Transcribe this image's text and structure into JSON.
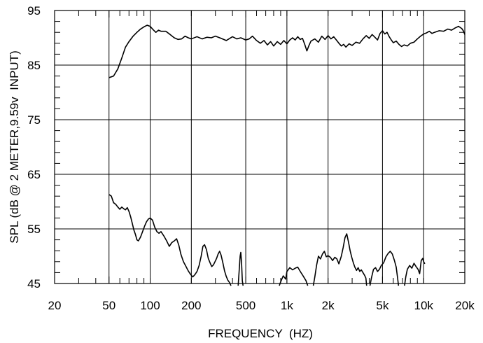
{
  "chart_data": {
    "type": "line",
    "xlabel": "FREQUENCY  (HZ)",
    "ylabel": "SPL (dB @ 2 METER,9.59v  INPUT)",
    "xscale": "log",
    "xlim": [
      20,
      20000
    ],
    "ylim": [
      45,
      95
    ],
    "grid": true,
    "x_ticks": [
      {
        "value": 20,
        "label": "20"
      },
      {
        "value": 50,
        "label": "50"
      },
      {
        "value": 100,
        "label": "100"
      },
      {
        "value": 200,
        "label": "200"
      },
      {
        "value": 500,
        "label": "500"
      },
      {
        "value": 1000,
        "label": "1k"
      },
      {
        "value": 2000,
        "label": "2k"
      },
      {
        "value": 5000,
        "label": "5k"
      },
      {
        "value": 10000,
        "label": "10k"
      },
      {
        "value": 20000,
        "label": "20k"
      }
    ],
    "y_ticks": [
      {
        "value": 45,
        "label": "45"
      },
      {
        "value": 55,
        "label": "55"
      },
      {
        "value": 65,
        "label": "65"
      },
      {
        "value": 75,
        "label": "75"
      },
      {
        "value": 85,
        "label": "85"
      },
      {
        "value": 95,
        "label": "95"
      }
    ],
    "series": [
      {
        "color": "#000000",
        "points": [
          [
            50,
            82.7
          ],
          [
            54,
            83.0
          ],
          [
            58,
            84.3
          ],
          [
            62,
            86.3
          ],
          [
            66,
            88.3
          ],
          [
            70,
            89.3
          ],
          [
            75,
            90.3
          ],
          [
            80,
            91.0
          ],
          [
            85,
            91.6
          ],
          [
            90,
            92.0
          ],
          [
            95,
            92.3
          ],
          [
            100,
            92.1
          ],
          [
            105,
            91.5
          ],
          [
            110,
            91.0
          ],
          [
            115,
            91.4
          ],
          [
            120,
            91.2
          ],
          [
            130,
            91.2
          ],
          [
            140,
            90.6
          ],
          [
            150,
            90.0
          ],
          [
            160,
            89.7
          ],
          [
            170,
            89.8
          ],
          [
            180,
            90.3
          ],
          [
            190,
            90.0
          ],
          [
            200,
            89.8
          ],
          [
            220,
            90.2
          ],
          [
            240,
            89.8
          ],
          [
            260,
            90.1
          ],
          [
            280,
            90.0
          ],
          [
            300,
            90.3
          ],
          [
            330,
            89.9
          ],
          [
            360,
            89.5
          ],
          [
            400,
            90.2
          ],
          [
            430,
            89.8
          ],
          [
            460,
            90.0
          ],
          [
            500,
            89.6
          ],
          [
            530,
            89.8
          ],
          [
            560,
            90.3
          ],
          [
            600,
            89.5
          ],
          [
            640,
            89.0
          ],
          [
            680,
            89.5
          ],
          [
            720,
            88.7
          ],
          [
            760,
            89.3
          ],
          [
            800,
            88.5
          ],
          [
            850,
            89.3
          ],
          [
            900,
            88.8
          ],
          [
            950,
            89.5
          ],
          [
            1000,
            88.9
          ],
          [
            1050,
            89.6
          ],
          [
            1100,
            90.0
          ],
          [
            1150,
            89.6
          ],
          [
            1200,
            90.2
          ],
          [
            1250,
            89.7
          ],
          [
            1300,
            89.9
          ],
          [
            1350,
            88.8
          ],
          [
            1400,
            87.6
          ],
          [
            1450,
            88.6
          ],
          [
            1500,
            89.4
          ],
          [
            1600,
            89.8
          ],
          [
            1700,
            89.2
          ],
          [
            1800,
            90.3
          ],
          [
            1900,
            89.7
          ],
          [
            2000,
            90.4
          ],
          [
            2100,
            89.8
          ],
          [
            2200,
            90.2
          ],
          [
            2300,
            89.6
          ],
          [
            2400,
            89.0
          ],
          [
            2500,
            88.5
          ],
          [
            2600,
            88.8
          ],
          [
            2700,
            88.3
          ],
          [
            2850,
            88.9
          ],
          [
            3000,
            88.6
          ],
          [
            3200,
            89.2
          ],
          [
            3400,
            89.0
          ],
          [
            3600,
            89.8
          ],
          [
            3800,
            90.4
          ],
          [
            4000,
            89.9
          ],
          [
            4200,
            90.6
          ],
          [
            4400,
            90.1
          ],
          [
            4600,
            89.6
          ],
          [
            4800,
            90.8
          ],
          [
            5000,
            91.3
          ],
          [
            5200,
            90.7
          ],
          [
            5400,
            91.0
          ],
          [
            5600,
            90.2
          ],
          [
            5800,
            89.6
          ],
          [
            6000,
            89.1
          ],
          [
            6300,
            89.4
          ],
          [
            6600,
            88.8
          ],
          [
            6900,
            88.4
          ],
          [
            7200,
            88.7
          ],
          [
            7600,
            88.5
          ],
          [
            8000,
            89.0
          ],
          [
            8500,
            89.2
          ],
          [
            9000,
            89.8
          ],
          [
            9500,
            90.3
          ],
          [
            10000,
            90.7
          ],
          [
            10500,
            90.9
          ],
          [
            11000,
            91.2
          ],
          [
            11500,
            90.8
          ],
          [
            12000,
            91.0
          ],
          [
            13000,
            91.3
          ],
          [
            14000,
            91.2
          ],
          [
            15000,
            91.6
          ],
          [
            16000,
            91.4
          ],
          [
            17000,
            91.8
          ],
          [
            18000,
            92.1
          ],
          [
            19000,
            91.7
          ],
          [
            19500,
            91.3
          ],
          [
            20000,
            90.6
          ]
        ]
      },
      {
        "color": "#000000",
        "segments": [
          [
            [
              50,
              61.3
            ],
            [
              52,
              61.0
            ],
            [
              54,
              59.8
            ],
            [
              56,
              59.5
            ],
            [
              58,
              59.0
            ],
            [
              60,
              58.6
            ],
            [
              62,
              59.0
            ],
            [
              64,
              58.7
            ],
            [
              66,
              58.5
            ],
            [
              68,
              58.9
            ],
            [
              70,
              58.2
            ],
            [
              72,
              57.2
            ],
            [
              74,
              56.0
            ],
            [
              76,
              54.8
            ],
            [
              78,
              54.0
            ],
            [
              80,
              53.0
            ],
            [
              82,
              52.8
            ],
            [
              85,
              53.5
            ],
            [
              88,
              54.5
            ],
            [
              91,
              55.5
            ],
            [
              94,
              56.3
            ],
            [
              97,
              56.8
            ],
            [
              100,
              57.0
            ],
            [
              104,
              56.6
            ],
            [
              108,
              55.3
            ],
            [
              112,
              54.5
            ],
            [
              116,
              54.2
            ],
            [
              120,
              54.5
            ],
            [
              126,
              53.7
            ],
            [
              132,
              52.8
            ],
            [
              138,
              51.8
            ],
            [
              144,
              52.5
            ],
            [
              150,
              52.8
            ],
            [
              156,
              53.2
            ],
            [
              162,
              52.0
            ],
            [
              168,
              50.3
            ],
            [
              175,
              49.0
            ],
            [
              182,
              48.2
            ],
            [
              190,
              47.3
            ],
            [
              197,
              46.7
            ],
            [
              205,
              46.2
            ],
            [
              212,
              46.6
            ],
            [
              220,
              47.2
            ],
            [
              228,
              48.3
            ],
            [
              236,
              50.0
            ],
            [
              243,
              51.8
            ],
            [
              250,
              52.1
            ],
            [
              258,
              51.2
            ],
            [
              266,
              49.6
            ],
            [
              274,
              48.8
            ],
            [
              282,
              48.1
            ],
            [
              290,
              48.4
            ],
            [
              298,
              49.0
            ],
            [
              306,
              49.6
            ],
            [
              314,
              50.4
            ],
            [
              322,
              50.9
            ],
            [
              330,
              50.2
            ],
            [
              340,
              48.8
            ],
            [
              350,
              47.3
            ],
            [
              360,
              46.3
            ],
            [
              370,
              45.6
            ],
            [
              380,
              45.2
            ],
            [
              390,
              44.6
            ]
          ],
          [
            [
              440,
              44.6
            ],
            [
              448,
              47.5
            ],
            [
              455,
              50.0
            ],
            [
              460,
              50.7
            ],
            [
              466,
              48.8
            ],
            [
              472,
              45.5
            ],
            [
              478,
              44.6
            ]
          ],
          [
            [
              880,
              44.6
            ],
            [
              900,
              45.3
            ],
            [
              940,
              46.4
            ],
            [
              980,
              45.8
            ],
            [
              1000,
              47.2
            ],
            [
              1050,
              47.9
            ],
            [
              1100,
              47.5
            ],
            [
              1150,
              47.8
            ],
            [
              1200,
              48.0
            ],
            [
              1260,
              47.1
            ],
            [
              1320,
              46.3
            ],
            [
              1380,
              45.5
            ],
            [
              1420,
              44.6
            ]
          ],
          [
            [
              1560,
              44.6
            ],
            [
              1600,
              46.2
            ],
            [
              1650,
              48.4
            ],
            [
              1700,
              50.0
            ],
            [
              1760,
              49.5
            ],
            [
              1820,
              50.4
            ],
            [
              1880,
              50.9
            ],
            [
              1940,
              49.9
            ],
            [
              2000,
              50.1
            ],
            [
              2080,
              49.8
            ],
            [
              2160,
              49.2
            ],
            [
              2240,
              49.8
            ],
            [
              2320,
              49.5
            ],
            [
              2400,
              48.6
            ],
            [
              2500,
              50.0
            ],
            [
              2580,
              51.6
            ],
            [
              2660,
              53.4
            ],
            [
              2740,
              54.1
            ],
            [
              2820,
              52.6
            ],
            [
              2900,
              51.0
            ],
            [
              2980,
              49.8
            ],
            [
              3060,
              48.8
            ],
            [
              3140,
              48.0
            ],
            [
              3230,
              47.4
            ],
            [
              3320,
              47.9
            ],
            [
              3410,
              47.2
            ],
            [
              3500,
              47.5
            ],
            [
              3600,
              47.0
            ],
            [
              3700,
              46.5
            ],
            [
              3780,
              46.0
            ],
            [
              3830,
              44.6
            ]
          ],
          [
            [
              4050,
              44.6
            ],
            [
              4150,
              46.0
            ],
            [
              4300,
              47.6
            ],
            [
              4450,
              47.9
            ],
            [
              4600,
              47.2
            ],
            [
              4750,
              47.6
            ],
            [
              4900,
              48.3
            ],
            [
              5100,
              48.8
            ],
            [
              5300,
              49.9
            ],
            [
              5500,
              50.5
            ],
            [
              5700,
              50.9
            ],
            [
              5900,
              50.4
            ],
            [
              6100,
              49.3
            ],
            [
              6300,
              48.0
            ],
            [
              6450,
              46.0
            ],
            [
              6550,
              44.6
            ]
          ],
          [
            [
              7250,
              44.6
            ],
            [
              7400,
              46.2
            ],
            [
              7600,
              47.6
            ],
            [
              7900,
              48.3
            ],
            [
              8200,
              47.8
            ],
            [
              8500,
              48.7
            ],
            [
              8800,
              48.1
            ],
            [
              9100,
              47.6
            ],
            [
              9350,
              46.8
            ],
            [
              9600,
              49.2
            ],
            [
              9850,
              49.6
            ],
            [
              10000,
              49.0
            ],
            [
              10200,
              48.6
            ]
          ]
        ]
      }
    ]
  }
}
